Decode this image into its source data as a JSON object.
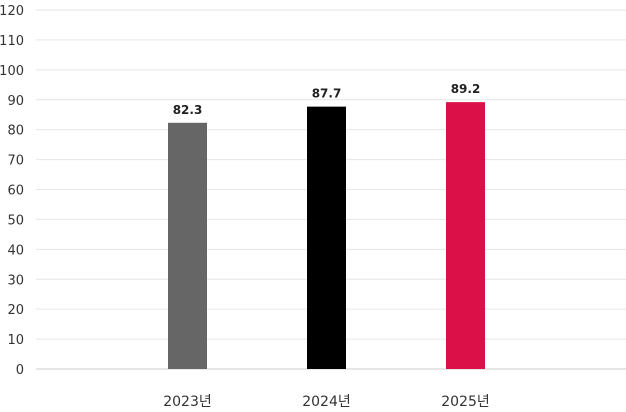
{
  "chart_data": {
    "type": "bar",
    "categories": [
      "2023년",
      "2024년",
      "2025년"
    ],
    "values": [
      82.3,
      87.7,
      89.2
    ],
    "value_labels": [
      "82.3",
      "87.7",
      "89.2"
    ],
    "colors": [
      "#666666",
      "#000000",
      "#dc1048"
    ],
    "ylim": [
      0,
      120
    ],
    "yticks": [
      0,
      10,
      20,
      30,
      40,
      50,
      60,
      70,
      80,
      90,
      100,
      110,
      120
    ],
    "title": "",
    "xlabel": "",
    "ylabel": "",
    "grid": true,
    "legend": "none"
  }
}
